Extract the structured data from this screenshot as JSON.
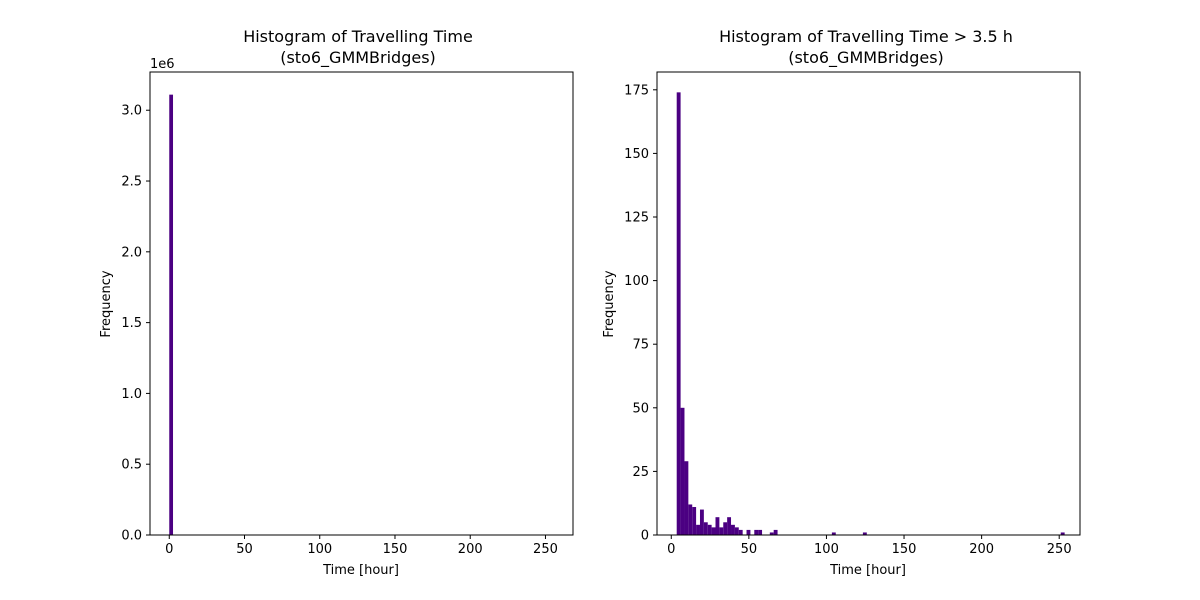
{
  "colors": {
    "bar": "#4b0082",
    "axes": "#000000",
    "background": "#ffffff"
  },
  "chart_data": [
    {
      "type": "bar",
      "title": "Histogram of Travelling Time\n(sto6_GMMBridges)",
      "title_lines": [
        "Histogram of Travelling Time",
        "(sto6_GMMBridges)"
      ],
      "xlabel": "Time [hour]",
      "ylabel": "Frequency",
      "y_offset_label": "1e6",
      "xlim": [
        -12.8,
        268.3
      ],
      "ylim": [
        0,
        3.27
      ],
      "xticks": [
        0,
        50,
        100,
        150,
        200,
        250
      ],
      "xtick_labels": [
        "0",
        "50",
        "100",
        "150",
        "200",
        "250"
      ],
      "yticks": [
        0,
        0.5,
        1.0,
        1.5,
        2.0,
        2.5,
        3.0
      ],
      "ytick_labels": [
        "0.0",
        "0.5",
        "1.0",
        "1.5",
        "2.0",
        "2.5",
        "3.0"
      ],
      "bin_width": 2.5,
      "bins": [
        {
          "x0": 0,
          "x1": 2.5,
          "value": 3.11
        }
      ],
      "grid": false,
      "legend": "none"
    },
    {
      "type": "bar",
      "title": "Histogram of Travelling Time > 3.5 h\n(sto6_GMMBridges)",
      "title_lines": [
        "Histogram of Travelling Time > 3.5 h",
        "(sto6_GMMBridges)"
      ],
      "xlabel": "Time [hour]",
      "ylabel": "Frequency",
      "xlim": [
        -9.2,
        263.4
      ],
      "ylim": [
        0,
        182
      ],
      "xticks": [
        0,
        50,
        100,
        150,
        200,
        250
      ],
      "xtick_labels": [
        "0",
        "50",
        "100",
        "150",
        "200",
        "250"
      ],
      "yticks": [
        0,
        25,
        50,
        75,
        100,
        125,
        150,
        175
      ],
      "ytick_labels": [
        "0",
        "25",
        "50",
        "75",
        "100",
        "125",
        "150",
        "175"
      ],
      "bin_width": 2.5,
      "bins": [
        {
          "x0": 3.5,
          "x1": 6.0,
          "value": 174
        },
        {
          "x0": 6.0,
          "x1": 8.5,
          "value": 50
        },
        {
          "x0": 8.5,
          "x1": 11.0,
          "value": 29
        },
        {
          "x0": 11.0,
          "x1": 13.5,
          "value": 12
        },
        {
          "x0": 13.5,
          "x1": 16.0,
          "value": 11
        },
        {
          "x0": 16.0,
          "x1": 18.5,
          "value": 4
        },
        {
          "x0": 18.5,
          "x1": 21.0,
          "value": 10
        },
        {
          "x0": 21.0,
          "x1": 23.5,
          "value": 5
        },
        {
          "x0": 23.5,
          "x1": 26.0,
          "value": 4
        },
        {
          "x0": 26.0,
          "x1": 28.5,
          "value": 3
        },
        {
          "x0": 28.5,
          "x1": 31.0,
          "value": 7
        },
        {
          "x0": 31.0,
          "x1": 33.5,
          "value": 3
        },
        {
          "x0": 33.5,
          "x1": 36.0,
          "value": 5
        },
        {
          "x0": 36.0,
          "x1": 38.5,
          "value": 7
        },
        {
          "x0": 38.5,
          "x1": 41.0,
          "value": 4
        },
        {
          "x0": 41.0,
          "x1": 43.5,
          "value": 3
        },
        {
          "x0": 43.5,
          "x1": 46.0,
          "value": 2
        },
        {
          "x0": 48.5,
          "x1": 51.0,
          "value": 2
        },
        {
          "x0": 53.5,
          "x1": 56.0,
          "value": 2
        },
        {
          "x0": 56.0,
          "x1": 58.5,
          "value": 2
        },
        {
          "x0": 63.5,
          "x1": 66.0,
          "value": 1
        },
        {
          "x0": 66.0,
          "x1": 68.5,
          "value": 2
        },
        {
          "x0": 103.5,
          "x1": 106.0,
          "value": 1
        },
        {
          "x0": 123.5,
          "x1": 126.0,
          "value": 1
        },
        {
          "x0": 251.0,
          "x1": 253.5,
          "value": 1
        }
      ],
      "grid": false,
      "legend": "none"
    }
  ]
}
